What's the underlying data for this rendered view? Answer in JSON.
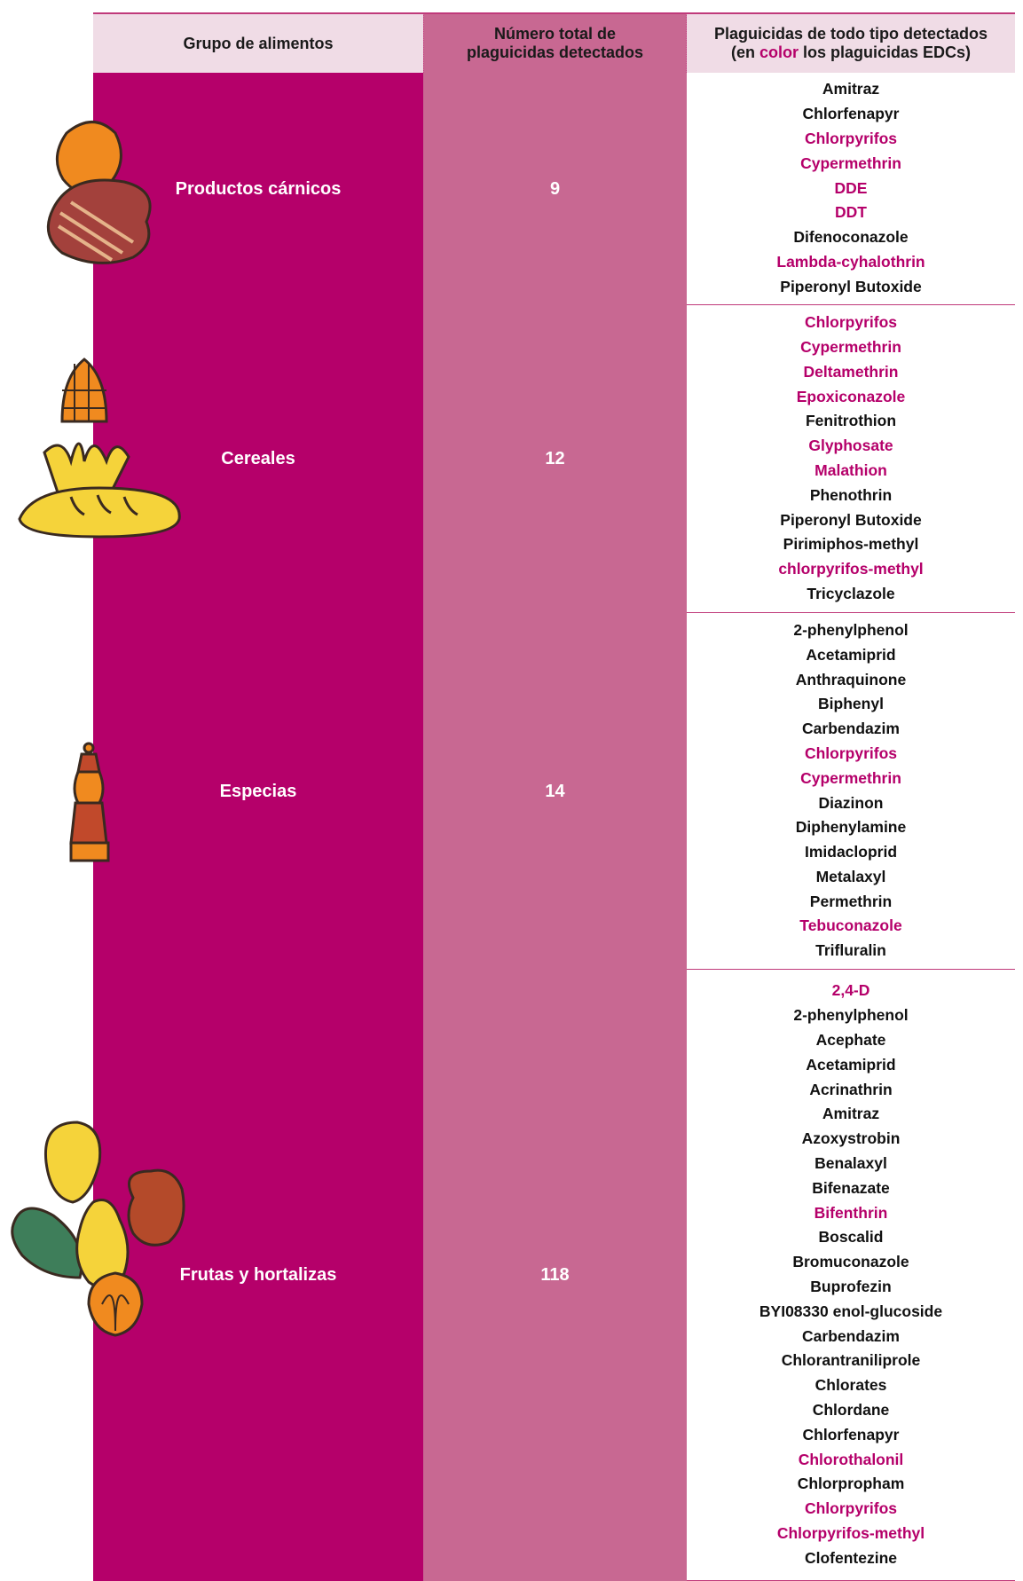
{
  "header": {
    "group": "Grupo de alimentos",
    "count": "Número total de plaguicidas detectados",
    "list_title": "Plaguicidas de todo tipo detectados",
    "list_note": [
      "(en ",
      "color",
      " los plaguicidas EDCs)"
    ]
  },
  "table": {
    "rows": [
      {
        "group": "Productos cárnicos",
        "count": 9,
        "pesticides": [
          {
            "name": "Amitraz",
            "edc": false
          },
          {
            "name": "Chlorfenapyr",
            "edc": false
          },
          {
            "name": "Chlorpyrifos",
            "edc": true
          },
          {
            "name": "Cypermethrin",
            "edc": true
          },
          {
            "name": "DDE",
            "edc": true
          },
          {
            "name": "DDT",
            "edc": true
          },
          {
            "name": "Difenoconazole",
            "edc": false
          },
          {
            "name": "Lambda-cyhalothrin",
            "edc": true
          },
          {
            "name": "Piperonyl Butoxide",
            "edc": false
          }
        ]
      },
      {
        "group": "Cereales",
        "count": 12,
        "pesticides": [
          {
            "name": "Chlorpyrifos",
            "edc": true
          },
          {
            "name": "Cypermethrin",
            "edc": true
          },
          {
            "name": "Deltamethrin",
            "edc": true
          },
          {
            "name": "Epoxiconazole",
            "edc": true
          },
          {
            "name": "Fenitrothion",
            "edc": false
          },
          {
            "name": "Glyphosate",
            "edc": true
          },
          {
            "name": "Malathion",
            "edc": true
          },
          {
            "name": "Phenothrin",
            "edc": false
          },
          {
            "name": "Piperonyl Butoxide",
            "edc": false
          },
          {
            "name": "Pirimiphos-methyl",
            "edc": false
          },
          {
            "name": "chlorpyrifos-methyl",
            "edc": true
          },
          {
            "name": "Tricyclazole",
            "edc": false
          }
        ]
      },
      {
        "group": "Especias",
        "count": 14,
        "pesticides": [
          {
            "name": "2-phenylphenol",
            "edc": false
          },
          {
            "name": "Acetamiprid",
            "edc": false
          },
          {
            "name": "Anthraquinone",
            "edc": false
          },
          {
            "name": "Biphenyl",
            "edc": false
          },
          {
            "name": "Carbendazim",
            "edc": false
          },
          {
            "name": "Chlorpyrifos",
            "edc": true
          },
          {
            "name": "Cypermethrin",
            "edc": true
          },
          {
            "name": "Diazinon",
            "edc": false
          },
          {
            "name": "Diphenylamine",
            "edc": false
          },
          {
            "name": "Imidacloprid",
            "edc": false
          },
          {
            "name": "Metalaxyl",
            "edc": false
          },
          {
            "name": "Permethrin",
            "edc": false
          },
          {
            "name": "Tebuconazole",
            "edc": true
          },
          {
            "name": "Trifluralin",
            "edc": false
          }
        ]
      },
      {
        "group": "Frutas y hortalizas",
        "count": 118,
        "pesticides": [
          {
            "name": "2,4-D",
            "edc": true
          },
          {
            "name": "2-phenylphenol",
            "edc": false
          },
          {
            "name": "Acephate",
            "edc": false
          },
          {
            "name": "Acetamiprid",
            "edc": false
          },
          {
            "name": "Acrinathrin",
            "edc": false
          },
          {
            "name": "Amitraz",
            "edc": false
          },
          {
            "name": "Azoxystrobin",
            "edc": false
          },
          {
            "name": "Benalaxyl",
            "edc": false
          },
          {
            "name": "Bifenazate",
            "edc": false
          },
          {
            "name": "Bifenthrin",
            "edc": true
          },
          {
            "name": "Boscalid",
            "edc": false
          },
          {
            "name": "Bromuconazole",
            "edc": false
          },
          {
            "name": "Buprofezin",
            "edc": false
          },
          {
            "name": "BYI08330 enol-glucoside",
            "edc": false
          },
          {
            "name": "Carbendazim",
            "edc": false
          },
          {
            "name": "Chlorantraniliprole",
            "edc": false
          },
          {
            "name": "Chlorates",
            "edc": false
          },
          {
            "name": "Chlordane",
            "edc": false
          },
          {
            "name": "Chlorfenapyr",
            "edc": false
          },
          {
            "name": "Chlorothalonil",
            "edc": true
          },
          {
            "name": "Chlorpropham",
            "edc": false
          },
          {
            "name": "Chlorpyrifos",
            "edc": true
          },
          {
            "name": "Chlorpyrifos-methyl",
            "edc": true
          },
          {
            "name": "Clofentezine",
            "edc": false
          }
        ]
      }
    ]
  }
}
